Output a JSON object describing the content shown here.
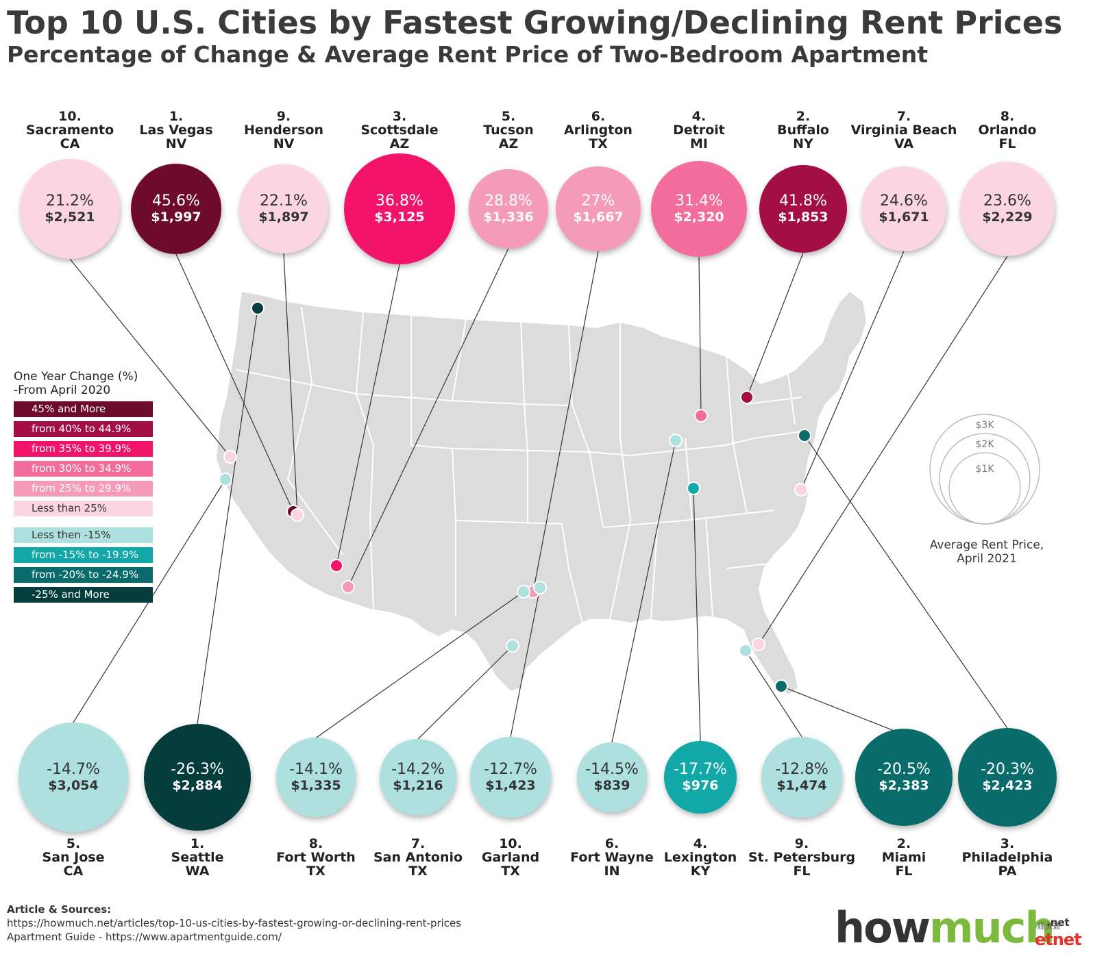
{
  "title": "Top 10 U.S. Cities by Fastest Growing/Declining Rent Prices",
  "subtitle": "Percentage of Change & Average Rent Price of Two-Bedroom Apartment",
  "legend": {
    "title_line1": "One Year Change (%)",
    "title_line2": "-From April 2020",
    "items": [
      {
        "label": "45% and More",
        "color": "#6e0b2c",
        "text_color": "#ffffff"
      },
      {
        "label": "from 40% to 44.9%",
        "color": "#a30f45",
        "text_color": "#ffffff"
      },
      {
        "label": "from 35% to 39.9%",
        "color": "#f2146a",
        "text_color": "#ffffff"
      },
      {
        "label": "from 30% to 34.9%",
        "color": "#f26d9c",
        "text_color": "#ffffff"
      },
      {
        "label": "from 25% to 29.9%",
        "color": "#f49bb9",
        "text_color": "#ffffff"
      },
      {
        "label": "Less than 25%",
        "color": "#fbd5e1",
        "text_color": "#333333"
      },
      {
        "label": "Less then -15%",
        "color": "#aee0e0",
        "text_color": "#333333"
      },
      {
        "label": "from -15% to -19.9%",
        "color": "#12a8a8",
        "text_color": "#ffffff"
      },
      {
        "label": "from -20% to -24.9%",
        "color": "#0a6b6b",
        "text_color": "#ffffff"
      },
      {
        "label": "-25% and More",
        "color": "#053c3c",
        "text_color": "#ffffff"
      }
    ]
  },
  "size_legend": {
    "labels": [
      "$3K",
      "$2K",
      "$1K"
    ],
    "caption_line1": "Average Rent Price,",
    "caption_line2": "April 2021"
  },
  "growing": [
    {
      "rank": "10.",
      "city": "Sacramento",
      "state": "CA",
      "pct": "21.2%",
      "price": "$2,521",
      "color": "#fbd5e1",
      "rent": 2521
    },
    {
      "rank": "1.",
      "city": "Las Vegas",
      "state": "NV",
      "pct": "45.6%",
      "price": "$1,997",
      "color": "#6e0b2c",
      "rent": 1997
    },
    {
      "rank": "9.",
      "city": "Henderson",
      "state": "NV",
      "pct": "22.1%",
      "price": "$1,897",
      "color": "#fbd5e1",
      "rent": 1897
    },
    {
      "rank": "3.",
      "city": "Scottsdale",
      "state": "AZ",
      "pct": "36.8%",
      "price": "$3,125",
      "color": "#f2146a",
      "rent": 3125
    },
    {
      "rank": "5.",
      "city": "Tucson",
      "state": "AZ",
      "pct": "28.8%",
      "price": "$1,336",
      "color": "#f49bb9",
      "rent": 1336
    },
    {
      "rank": "6.",
      "city": "Arlington",
      "state": "TX",
      "pct": "27%",
      "price": "$1,667",
      "color": "#f49bb9",
      "rent": 1667
    },
    {
      "rank": "4.",
      "city": "Detroit",
      "state": "MI",
      "pct": "31.4%",
      "price": "$2,320",
      "color": "#f26d9c",
      "rent": 2320
    },
    {
      "rank": "2.",
      "city": "Buffalo",
      "state": "NY",
      "pct": "41.8%",
      "price": "$1,853",
      "color": "#a30f45",
      "rent": 1853
    },
    {
      "rank": "7.",
      "city": "Virginia Beach",
      "state": "VA",
      "pct": "24.6%",
      "price": "$1,671",
      "color": "#fbd5e1",
      "rent": 1671
    },
    {
      "rank": "8.",
      "city": "Orlando",
      "state": "FL",
      "pct": "23.6%",
      "price": "$2,229",
      "color": "#fbd5e1",
      "rent": 2229
    }
  ],
  "declining": [
    {
      "rank": "5.",
      "city": "San Jose",
      "state": "CA",
      "pct": "-14.7%",
      "price": "$3,054",
      "color": "#aee0e0",
      "rent": 3054
    },
    {
      "rank": "1.",
      "city": "Seattle",
      "state": "WA",
      "pct": "-26.3%",
      "price": "$2,884",
      "color": "#053c3c",
      "rent": 2884
    },
    {
      "rank": "8.",
      "city": "Fort Worth",
      "state": "TX",
      "pct": "-14.1%",
      "price": "$1,335",
      "color": "#aee0e0",
      "rent": 1335
    },
    {
      "rank": "7.",
      "city": "San Antonio",
      "state": "TX",
      "pct": "-14.2%",
      "price": "$1,216",
      "color": "#aee0e0",
      "rent": 1216
    },
    {
      "rank": "10.",
      "city": "Garland",
      "state": "TX",
      "pct": "-12.7%",
      "price": "$1,423",
      "color": "#aee0e0",
      "rent": 1423
    },
    {
      "rank": "6.",
      "city": "Fort Wayne",
      "state": "IN",
      "pct": "-14.5%",
      "price": "$839",
      "color": "#aee0e0",
      "rent": 839
    },
    {
      "rank": "4.",
      "city": "Lexington",
      "state": "KY",
      "pct": "-17.7%",
      "price": "$976",
      "color": "#12a8a8",
      "rent": 976
    },
    {
      "rank": "9.",
      "city": "St. Petersburg",
      "state": "FL",
      "pct": "-12.8%",
      "price": "$1,474",
      "color": "#aee0e0",
      "rent": 1474
    },
    {
      "rank": "2.",
      "city": "Miami",
      "state": "FL",
      "pct": "-20.5%",
      "price": "$2,383",
      "color": "#0a6b6b",
      "rent": 2383
    },
    {
      "rank": "3.",
      "city": "Philadelphia",
      "state": "PA",
      "pct": "-20.3%",
      "price": "$2,423",
      "color": "#0a6b6b",
      "rent": 2423
    }
  ],
  "sources": {
    "heading": "Article & Sources:",
    "line1": "https://howmuch.net/articles/top-10-us-cities-by-fastest-growing-or-declining-rent-prices",
    "line2": "Apartment Guide - https://www.apartmentguide.com/"
  },
  "logo": {
    "how": "how",
    "much": "much",
    "net": ".net",
    "etnet": "etnet",
    "cjk": "經濟通"
  }
}
